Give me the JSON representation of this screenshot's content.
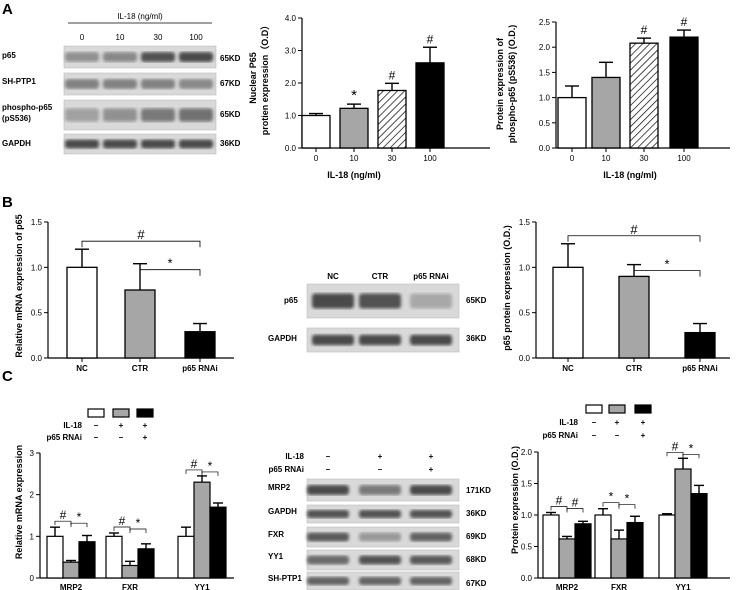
{
  "panels": {
    "a": "A",
    "b": "B",
    "c": "C"
  },
  "colors": {
    "white": "#ffffff",
    "gray": "#a6a6a6",
    "black": "#000000",
    "blot_bg": "#d9d9d9",
    "band": "#3a3a3a"
  },
  "blot_a": {
    "header": "IL-18 (ng/ml)",
    "doses": [
      "0",
      "10",
      "30",
      "100"
    ],
    "rows": [
      {
        "label": "p65",
        "size": "65KD",
        "intensity": [
          0.45,
          0.5,
          0.85,
          0.9
        ]
      },
      {
        "label": "SH-PTP1",
        "size": "67KD",
        "intensity": [
          0.55,
          0.55,
          0.55,
          0.5
        ]
      },
      {
        "label": "phospho-p65",
        "label2": "(pS536)",
        "size": "65KD",
        "intensity": [
          0.35,
          0.45,
          0.6,
          0.65
        ]
      },
      {
        "label": "GAPDH",
        "size": "36KD",
        "intensity": [
          0.9,
          0.9,
          0.9,
          0.9
        ]
      }
    ]
  },
  "blot_b": {
    "lanes": [
      "NC",
      "CTR",
      "p65 RNAi"
    ],
    "rows": [
      {
        "label": "p65",
        "size": "65KD",
        "intensity": [
          0.9,
          0.85,
          0.3
        ]
      },
      {
        "label": "GAPDH",
        "size": "36KD",
        "intensity": [
          0.9,
          0.9,
          0.9
        ]
      }
    ]
  },
  "blot_c": {
    "treatments": [
      {
        "label": "IL-18",
        "signs": [
          "–",
          "+",
          "+"
        ]
      },
      {
        "label": "p65 RNAi",
        "signs": [
          "–",
          "–",
          "+"
        ]
      }
    ],
    "rows": [
      {
        "label": "MRP2",
        "size": "171KD",
        "intensity": [
          0.9,
          0.6,
          0.9
        ]
      },
      {
        "label": "GAPDH",
        "size": "36KD",
        "intensity": [
          0.85,
          0.85,
          0.85
        ]
      },
      {
        "label": "FXR",
        "size": "69KD",
        "intensity": [
          0.8,
          0.4,
          0.75
        ]
      },
      {
        "label": "YY1",
        "size": "68KD",
        "intensity": [
          0.7,
          0.85,
          0.8
        ]
      },
      {
        "label": "SH-PTP1",
        "size": "67KD",
        "intensity": [
          0.75,
          0.75,
          0.75
        ]
      }
    ]
  },
  "legend_c": {
    "treatments": [
      {
        "label": "IL-18",
        "signs": [
          "–",
          "+",
          "+"
        ]
      },
      {
        "label": "p65 RNAi",
        "signs": [
          "–",
          "–",
          "+"
        ]
      }
    ]
  },
  "chart_data": [
    {
      "id": "a1",
      "type": "bar",
      "categories": [
        "0",
        "10",
        "30",
        "100"
      ],
      "values": [
        1.0,
        1.22,
        1.77,
        2.62
      ],
      "errors": [
        0.06,
        0.13,
        0.22,
        0.48
      ],
      "fills": [
        "white",
        "gray",
        "hatch",
        "black"
      ],
      "xlabel": "IL-18 (ng/ml)",
      "ylabel": [
        "Nuclear P65",
        "protien expression（O.D）"
      ],
      "ylim": [
        0,
        4
      ],
      "yticks": [
        0.0,
        1.0,
        2.0,
        3.0,
        4.0
      ],
      "ytick_labels": [
        "0.0",
        "1.0",
        "2.0",
        "3.0",
        "4.0"
      ],
      "marks": [
        "",
        "*",
        "#",
        "#"
      ]
    },
    {
      "id": "a2",
      "type": "bar",
      "categories": [
        "0",
        "10",
        "30",
        "100"
      ],
      "values": [
        1.0,
        1.4,
        2.08,
        2.2
      ],
      "errors": [
        0.23,
        0.3,
        0.1,
        0.14
      ],
      "fills": [
        "white",
        "gray",
        "hatch",
        "black"
      ],
      "xlabel": "IL-18 (ng/ml)",
      "ylabel": [
        "Protein expression of",
        "phospho-p65 (pS536) (O.D.)"
      ],
      "ylim": [
        0,
        2.5
      ],
      "yticks": [
        0.0,
        0.5,
        1.0,
        1.5,
        2.0,
        2.5
      ],
      "ytick_labels": [
        "0.0",
        "0.5",
        "1.0",
        "1.5",
        "2.0",
        "2.5"
      ],
      "marks": [
        "",
        "",
        "#",
        "#"
      ]
    },
    {
      "id": "b1",
      "type": "bar",
      "categories": [
        "NC",
        "CTR",
        "p65 RNAi"
      ],
      "values": [
        1.0,
        0.75,
        0.29
      ],
      "errors": [
        0.2,
        0.29,
        0.09
      ],
      "fills": [
        "white",
        "gray",
        "black"
      ],
      "xlabel": "",
      "ylabel": [
        "Relative mRNA expression of p65"
      ],
      "ylim": [
        0,
        1.5
      ],
      "yticks": [
        0.0,
        0.5,
        1.0,
        1.5
      ],
      "ytick_labels": [
        "0.0",
        "0.5",
        "1.0",
        "1.5"
      ],
      "brackets": [
        {
          "from": 0,
          "to": 2,
          "mark": "#"
        },
        {
          "from": 1,
          "to": 2,
          "mark": "*"
        }
      ]
    },
    {
      "id": "b2",
      "type": "bar",
      "categories": [
        "NC",
        "CTR",
        "p65 RNAi"
      ],
      "values": [
        1.0,
        0.9,
        0.28
      ],
      "errors": [
        0.26,
        0.13,
        0.1
      ],
      "fills": [
        "white",
        "gray",
        "black"
      ],
      "xlabel": "",
      "ylabel": [
        "p65 protein expression (O.D.)"
      ],
      "ylim": [
        0,
        1.5
      ],
      "yticks": [
        0.0,
        0.5,
        1.0,
        1.5
      ],
      "ytick_labels": [
        "0.0",
        "0.5",
        "1.0",
        "1.5"
      ],
      "brackets": [
        {
          "from": 0,
          "to": 2,
          "mark": "#"
        },
        {
          "from": 1,
          "to": 2,
          "mark": "*"
        }
      ]
    },
    {
      "id": "c1",
      "type": "bar",
      "categories": [
        "MRP2",
        "FXR",
        "YY1"
      ],
      "series": [
        {
          "values": [
            1.0,
            1.0,
            1.0
          ],
          "errors": [
            0.22,
            0.08,
            0.22
          ],
          "fill": "white"
        },
        {
          "values": [
            0.38,
            0.3,
            2.3
          ],
          "errors": [
            0.04,
            0.1,
            0.15
          ],
          "fill": "gray"
        },
        {
          "values": [
            0.87,
            0.7,
            1.7
          ],
          "errors": [
            0.15,
            0.12,
            0.1
          ],
          "fill": "black"
        }
      ],
      "xlabel": "",
      "ylabel": [
        "Relative mRNA expression"
      ],
      "ylim": [
        0,
        3
      ],
      "yticks": [
        0,
        1,
        2,
        3
      ],
      "ytick_labels": [
        "0",
        "1",
        "2",
        "3"
      ],
      "group_marks": [
        [
          "#",
          "*"
        ],
        [
          "#",
          "*"
        ],
        [
          "#",
          "*"
        ]
      ]
    },
    {
      "id": "c2",
      "type": "bar",
      "categories": [
        "MRP2",
        "FXR",
        "YY1"
      ],
      "series": [
        {
          "values": [
            1.0,
            1.0,
            1.0
          ],
          "errors": [
            0.04,
            0.1,
            0.02
          ],
          "fill": "white"
        },
        {
          "values": [
            0.62,
            0.62,
            1.73
          ],
          "errors": [
            0.04,
            0.14,
            0.17
          ],
          "fill": "gray"
        },
        {
          "values": [
            0.86,
            0.88,
            1.34
          ],
          "errors": [
            0.04,
            0.1,
            0.13
          ],
          "fill": "black"
        }
      ],
      "xlabel": "",
      "ylabel": [
        "Protein expression (O.D.)"
      ],
      "ylim": [
        0,
        2.0
      ],
      "yticks": [
        0.0,
        0.5,
        1.0,
        1.5,
        2.0
      ],
      "ytick_labels": [
        "0.0",
        "0.5",
        "1.0",
        "1.5",
        "2.0"
      ],
      "group_marks": [
        [
          "#",
          "#"
        ],
        [
          "*",
          "*"
        ],
        [
          "#",
          "*"
        ]
      ]
    }
  ]
}
